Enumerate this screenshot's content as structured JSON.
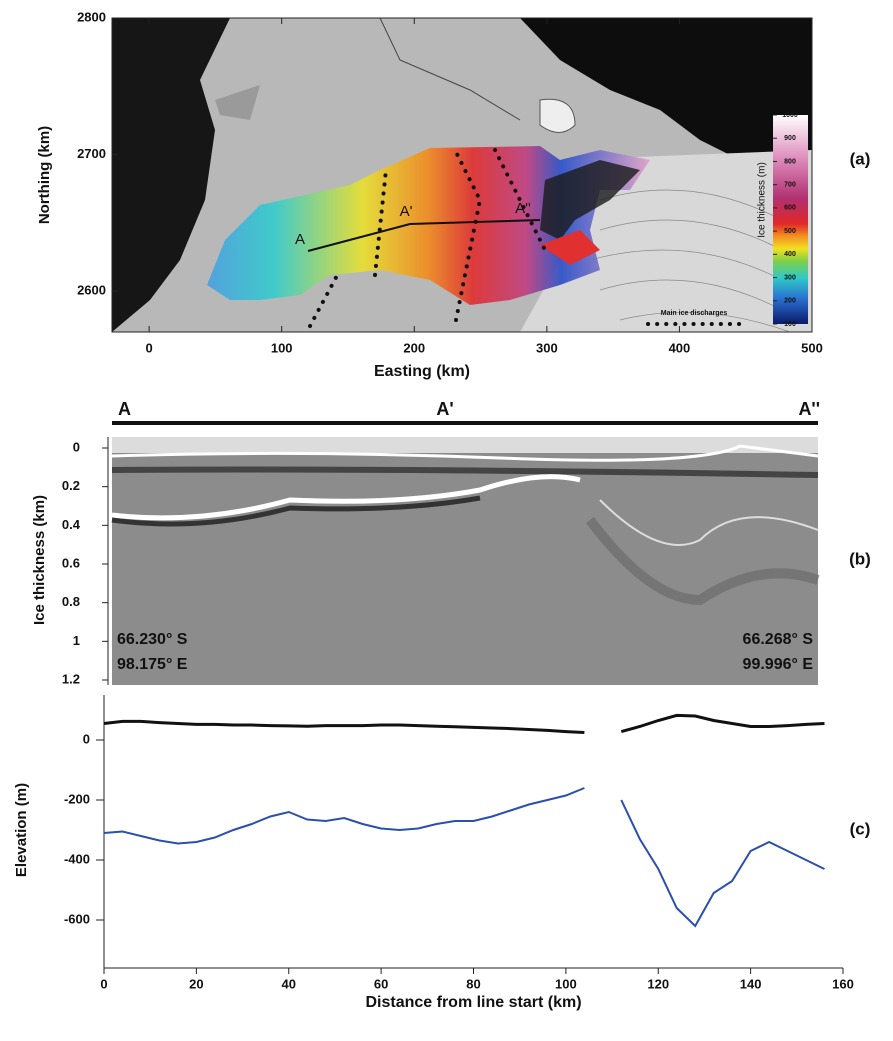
{
  "chart_data": [
    {
      "type": "map",
      "panel": "(a)",
      "xlabel": "Easting (km)",
      "ylabel": "Northing (km)",
      "xlim": [
        -28,
        500
      ],
      "xticks": [
        0,
        100,
        200,
        300,
        400,
        500
      ],
      "ylim": [
        2570,
        2800
      ],
      "yticks": [
        2600,
        2700,
        2800
      ],
      "colorbar": {
        "label": "Ice thickness (m)",
        "lim": [
          100,
          1000
        ],
        "ticks": [
          100,
          200,
          300,
          400,
          500,
          600,
          700,
          800,
          900,
          1000
        ]
      },
      "annotations": [
        "A",
        "A'",
        "A''"
      ],
      "legend": "Main ice discharges"
    },
    {
      "type": "radargram",
      "panel": "(b)",
      "ylabel": "Ice thickness (km)",
      "ylim": [
        0,
        1.2
      ],
      "yticks": [
        0,
        0.2,
        0.4,
        0.6,
        0.8,
        1,
        1.2
      ],
      "profile_labels": [
        "A",
        "A'",
        "A''"
      ],
      "annotations": [
        "66.230° S",
        "98.175° E",
        "66.268° S",
        "99.996° E"
      ]
    },
    {
      "type": "line",
      "panel": "(c)",
      "xlabel": "Distance from line start (km)",
      "ylabel": "Elevation (m)",
      "xlim": [
        0,
        160
      ],
      "xticks": [
        0,
        20,
        40,
        60,
        80,
        100,
        120,
        140,
        160
      ],
      "ylim": [
        -760,
        150
      ],
      "yticks": [
        -600,
        -400,
        -200,
        0
      ],
      "x": [
        0,
        4,
        8,
        12,
        16,
        20,
        24,
        28,
        32,
        36,
        40,
        44,
        48,
        52,
        56,
        60,
        64,
        68,
        72,
        76,
        80,
        84,
        88,
        92,
        96,
        100,
        104,
        108,
        112,
        116,
        120,
        124,
        128,
        132,
        136,
        140,
        144,
        148,
        152,
        156
      ],
      "series": [
        {
          "color": "#111111",
          "values": [
            55,
            62,
            62,
            58,
            55,
            52,
            52,
            50,
            50,
            48,
            47,
            46,
            48,
            48,
            48,
            50,
            50,
            48,
            46,
            44,
            42,
            40,
            38,
            35,
            32,
            28,
            25,
            null,
            28,
            45,
            65,
            82,
            80,
            65,
            55,
            45,
            45,
            48,
            52,
            55
          ]
        },
        {
          "color": "#2b4fae",
          "values": [
            -310,
            -305,
            -320,
            -335,
            -345,
            -340,
            -325,
            -300,
            -280,
            -255,
            -240,
            -265,
            -270,
            -260,
            -280,
            -295,
            -300,
            -295,
            -280,
            -270,
            -270,
            -255,
            -235,
            -215,
            -200,
            -185,
            -160,
            null,
            -200,
            -330,
            -430,
            -560,
            -620,
            -510,
            -470,
            -370,
            -340,
            -370,
            -400,
            -430
          ]
        }
      ]
    }
  ]
}
